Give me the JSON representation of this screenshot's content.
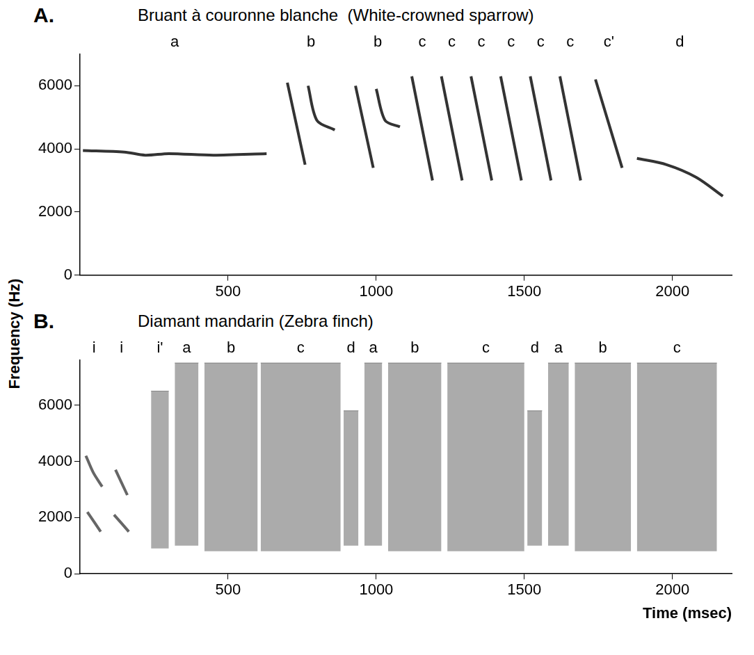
{
  "chart_data": [
    {
      "type": "line",
      "title": "A.",
      "subtitle": "Bruant à couronne blanche  (White-crowned sparrow)",
      "color": "#333333",
      "grid": false,
      "xlim": [
        0,
        2200
      ],
      "xticks": [
        500,
        1000,
        1500,
        2000
      ],
      "ylim": [
        0,
        7000
      ],
      "yticks": [
        0,
        2000,
        4000,
        6000
      ],
      "syllables": [
        {
          "label": "a",
          "strokes": [
            [
              [
                10,
                3950
              ],
              [
                150,
                3900
              ],
              [
                220,
                3800
              ],
              [
                300,
                3850
              ],
              [
                450,
                3800
              ],
              [
                630,
                3850
              ]
            ]
          ]
        },
        {
          "label": "b",
          "strokes": [
            [
              [
                700,
                6100
              ],
              [
                760,
                3500
              ]
            ],
            [
              [
                770,
                6000
              ],
              [
                800,
                4900
              ],
              [
                860,
                4600
              ]
            ]
          ]
        },
        {
          "label": "b",
          "strokes": [
            [
              [
                930,
                6000
              ],
              [
                990,
                3400
              ]
            ],
            [
              [
                1000,
                5900
              ],
              [
                1030,
                4900
              ],
              [
                1080,
                4700
              ]
            ]
          ]
        },
        {
          "label": "c",
          "strokes": [
            [
              [
                1120,
                6300
              ],
              [
                1190,
                3000
              ]
            ]
          ]
        },
        {
          "label": "c",
          "strokes": [
            [
              [
                1220,
                6300
              ],
              [
                1290,
                3000
              ]
            ]
          ]
        },
        {
          "label": "c",
          "strokes": [
            [
              [
                1320,
                6300
              ],
              [
                1390,
                3000
              ]
            ]
          ]
        },
        {
          "label": "c",
          "strokes": [
            [
              [
                1420,
                6300
              ],
              [
                1490,
                3000
              ]
            ]
          ]
        },
        {
          "label": "c",
          "strokes": [
            [
              [
                1520,
                6300
              ],
              [
                1590,
                3000
              ]
            ]
          ]
        },
        {
          "label": "c",
          "strokes": [
            [
              [
                1620,
                6300
              ],
              [
                1690,
                3000
              ]
            ]
          ]
        },
        {
          "label": "c'",
          "strokes": [
            [
              [
                1740,
                6200
              ],
              [
                1830,
                3400
              ]
            ]
          ]
        },
        {
          "label": "d",
          "strokes": [
            [
              [
                1880,
                3700
              ],
              [
                1980,
                3500
              ],
              [
                2080,
                3100
              ],
              [
                2170,
                2500
              ]
            ]
          ]
        }
      ]
    },
    {
      "type": "line",
      "title": "B.",
      "subtitle": "Diamant mandarin (Zebra finch)",
      "x_label": "Time (msec)",
      "y_label": "Frequency (Hz)",
      "color": "#666666",
      "grid": false,
      "xlim": [
        0,
        2200
      ],
      "xticks": [
        500,
        1000,
        1500,
        2000
      ],
      "ylim": [
        0,
        7600
      ],
      "yticks": [
        0,
        2000,
        4000,
        6000
      ],
      "syllables": [
        {
          "label": "i",
          "strokes": [
            [
              [
                20,
                4200
              ],
              [
                45,
                3600
              ],
              [
                75,
                3100
              ]
            ],
            [
              [
                25,
                2200
              ],
              [
                70,
                1500
              ]
            ]
          ]
        },
        {
          "label": "i",
          "strokes": [
            [
              [
                120,
                3700
              ],
              [
                160,
                2800
              ]
            ],
            [
              [
                115,
                2100
              ],
              [
                165,
                1500
              ]
            ]
          ]
        },
        {
          "label": "i'",
          "start": 240,
          "end": 300,
          "fmin": 900,
          "fmax": 6500
        },
        {
          "label": "a",
          "start": 320,
          "end": 400,
          "fmin": 1000,
          "fmax": 7500
        },
        {
          "label": "b",
          "start": 420,
          "end": 600,
          "fmin": 800,
          "fmax": 7500
        },
        {
          "label": "c",
          "start": 610,
          "end": 880,
          "fmin": 800,
          "fmax": 7500
        },
        {
          "label": "d",
          "start": 890,
          "end": 940,
          "fmin": 1000,
          "fmax": 5800
        },
        {
          "label": "a",
          "start": 960,
          "end": 1020,
          "fmin": 1000,
          "fmax": 7500
        },
        {
          "label": "b",
          "start": 1040,
          "end": 1220,
          "fmin": 800,
          "fmax": 7500
        },
        {
          "label": "c",
          "start": 1240,
          "end": 1500,
          "fmin": 800,
          "fmax": 7500
        },
        {
          "label": "d",
          "start": 1510,
          "end": 1560,
          "fmin": 1000,
          "fmax": 5800
        },
        {
          "label": "a",
          "start": 1580,
          "end": 1650,
          "fmin": 1000,
          "fmax": 7500
        },
        {
          "label": "b",
          "start": 1670,
          "end": 1860,
          "fmin": 800,
          "fmax": 7500
        },
        {
          "label": "c",
          "start": 1880,
          "end": 2150,
          "fmin": 800,
          "fmax": 7500
        }
      ]
    }
  ]
}
